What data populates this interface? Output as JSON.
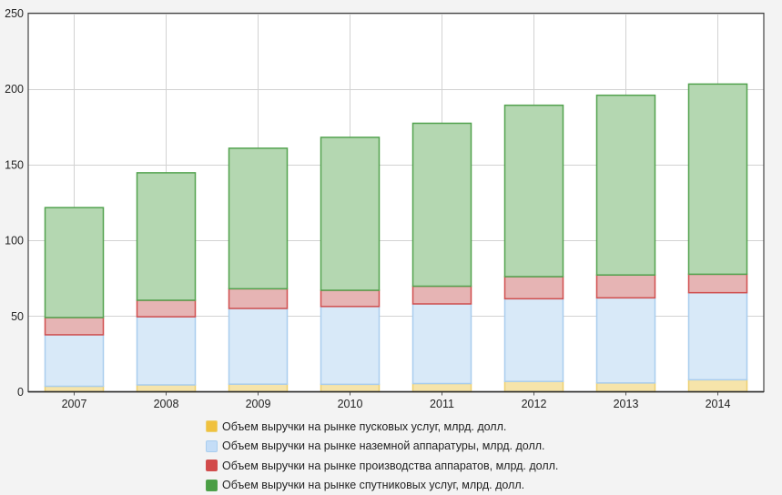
{
  "chart_data": {
    "type": "bar",
    "stacked": true,
    "categories": [
      "2007",
      "2008",
      "2009",
      "2010",
      "2011",
      "2012",
      "2013",
      "2014"
    ],
    "series": [
      {
        "name": "Объем выручки на рынке пусковых услуг, млрд. долл.",
        "values": [
          3.6,
          4.5,
          5.0,
          4.9,
          5.4,
          6.8,
          5.8,
          7.9
        ],
        "fill": "#f6e4aa",
        "stroke": "#ecd070",
        "swatch": "#f0c13e"
      },
      {
        "name": "Объем выручки на рынке наземной аппаратуры, млрд. долл.",
        "values": [
          34.0,
          45.0,
          50.0,
          51.4,
          52.6,
          54.6,
          56.2,
          57.5
        ],
        "fill": "#d8e9f8",
        "stroke": "#a9cdee",
        "swatch": "#c4ddf7"
      },
      {
        "name": "Объем выручки на рынке производства аппаратов, млрд. долл.",
        "values": [
          11.4,
          10.9,
          13.0,
          10.7,
          11.7,
          14.6,
          15.1,
          12.2
        ],
        "fill": "#e6b4b4",
        "stroke": "#d04f4f",
        "swatch": "#d24a4a"
      },
      {
        "name": "Объем выручки на рынке спутниковых услуг, млрд. долл.",
        "values": [
          72.6,
          84.2,
          92.8,
          101.0,
          107.6,
          113.2,
          118.7,
          125.6
        ],
        "fill": "#b4d7b1",
        "stroke": "#52a24e",
        "swatch": "#4a9e44"
      }
    ],
    "ylim": [
      0,
      250
    ],
    "yticks": [
      0,
      50,
      100,
      150,
      200,
      250
    ],
    "grid": true,
    "legend_position": "bottom",
    "title": "",
    "xlabel": "",
    "ylabel": ""
  }
}
